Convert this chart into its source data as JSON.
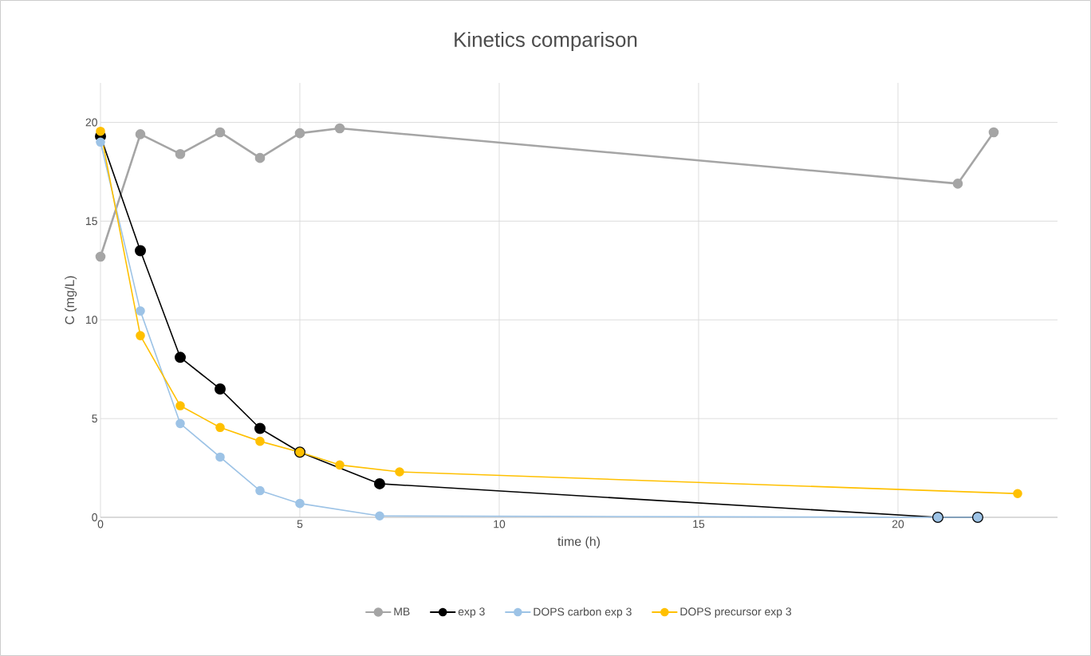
{
  "chart_data": {
    "type": "line",
    "title": "Kinetics comparison",
    "xlabel": "time (h)",
    "ylabel": "C (mg/L)",
    "xlim": [
      0,
      24
    ],
    "ylim": [
      0,
      22
    ],
    "xticks": [
      0,
      5,
      10,
      15,
      20
    ],
    "yticks": [
      0,
      5,
      10,
      15,
      20
    ],
    "grid": true,
    "legend": "bottom",
    "marker": "circle",
    "line_style": "solid",
    "series": [
      {
        "name": "MB",
        "color": "#a5a5a5",
        "x": [
          0,
          1,
          2,
          3,
          4,
          5,
          6,
          21.5,
          22.4
        ],
        "values": [
          13.2,
          19.4,
          18.4,
          19.5,
          18.2,
          19.45,
          19.7,
          16.9,
          19.5
        ]
      },
      {
        "name": "exp 3",
        "color": "#000000",
        "x": [
          0,
          1,
          2,
          3,
          4,
          5,
          7,
          21,
          22
        ],
        "values": [
          19.3,
          13.5,
          8.1,
          6.5,
          4.5,
          3.3,
          1.7,
          0,
          0
        ]
      },
      {
        "name": "DOPS carbon exp 3",
        "color": "#9dc3e6",
        "x": [
          0,
          1,
          2,
          3,
          4,
          5,
          7,
          21,
          22
        ],
        "values": [
          19.0,
          10.45,
          4.75,
          3.05,
          1.35,
          0.7,
          0.07,
          0,
          0
        ]
      },
      {
        "name": "DOPS precursor exp 3",
        "color": "#ffc000",
        "x": [
          0,
          1,
          2,
          3,
          4,
          5,
          6,
          7.5,
          23
        ],
        "values": [
          19.55,
          9.2,
          5.65,
          4.55,
          3.85,
          3.3,
          2.65,
          2.3,
          1.2
        ]
      }
    ]
  }
}
